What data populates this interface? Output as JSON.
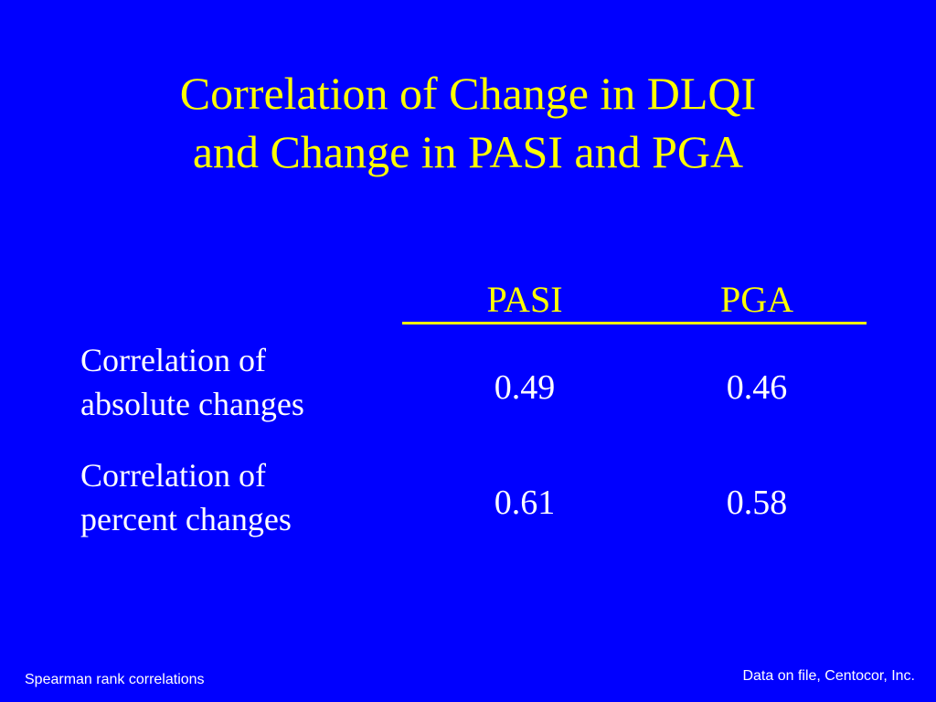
{
  "slide": {
    "background_color": "#0000ff",
    "accent_color": "#ffff00",
    "text_color": "#ffffff",
    "title_lines": [
      "Correlation of Change in DLQI",
      "and Change in PASI and PGA"
    ]
  },
  "table": {
    "columns": [
      "PASI",
      "PGA"
    ],
    "rows": [
      {
        "label_lines": [
          "Correlation of",
          "absolute changes"
        ],
        "values": [
          "0.49",
          "0.46"
        ]
      },
      {
        "label_lines": [
          "Correlation of",
          "percent changes"
        ],
        "values": [
          "0.61",
          "0.58"
        ]
      }
    ]
  },
  "footer": {
    "left_note": "Spearman rank correlations",
    "right_note": "Data on file, Centocor, Inc."
  }
}
